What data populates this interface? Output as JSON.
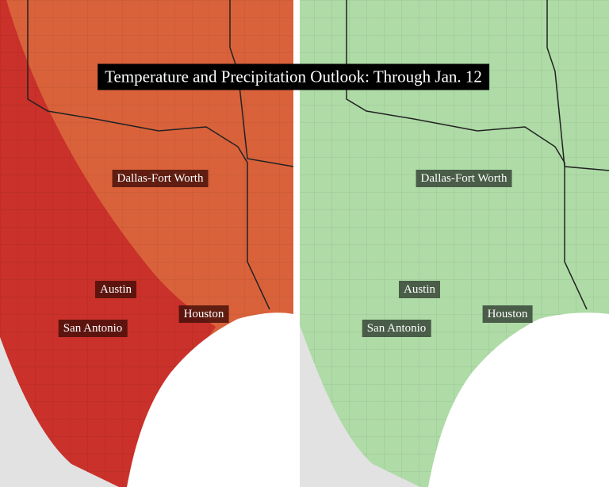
{
  "title": "Temperature and Precipitation Outlook: Through Jan. 12",
  "panels": [
    {
      "labels": [
        "Dallas-Fort Worth",
        "Austin",
        "San Antonio",
        "Houston"
      ]
    },
    {
      "labels": [
        "Dallas-Fort Worth",
        "Austin",
        "San Antonio",
        "Houston"
      ]
    }
  ]
}
